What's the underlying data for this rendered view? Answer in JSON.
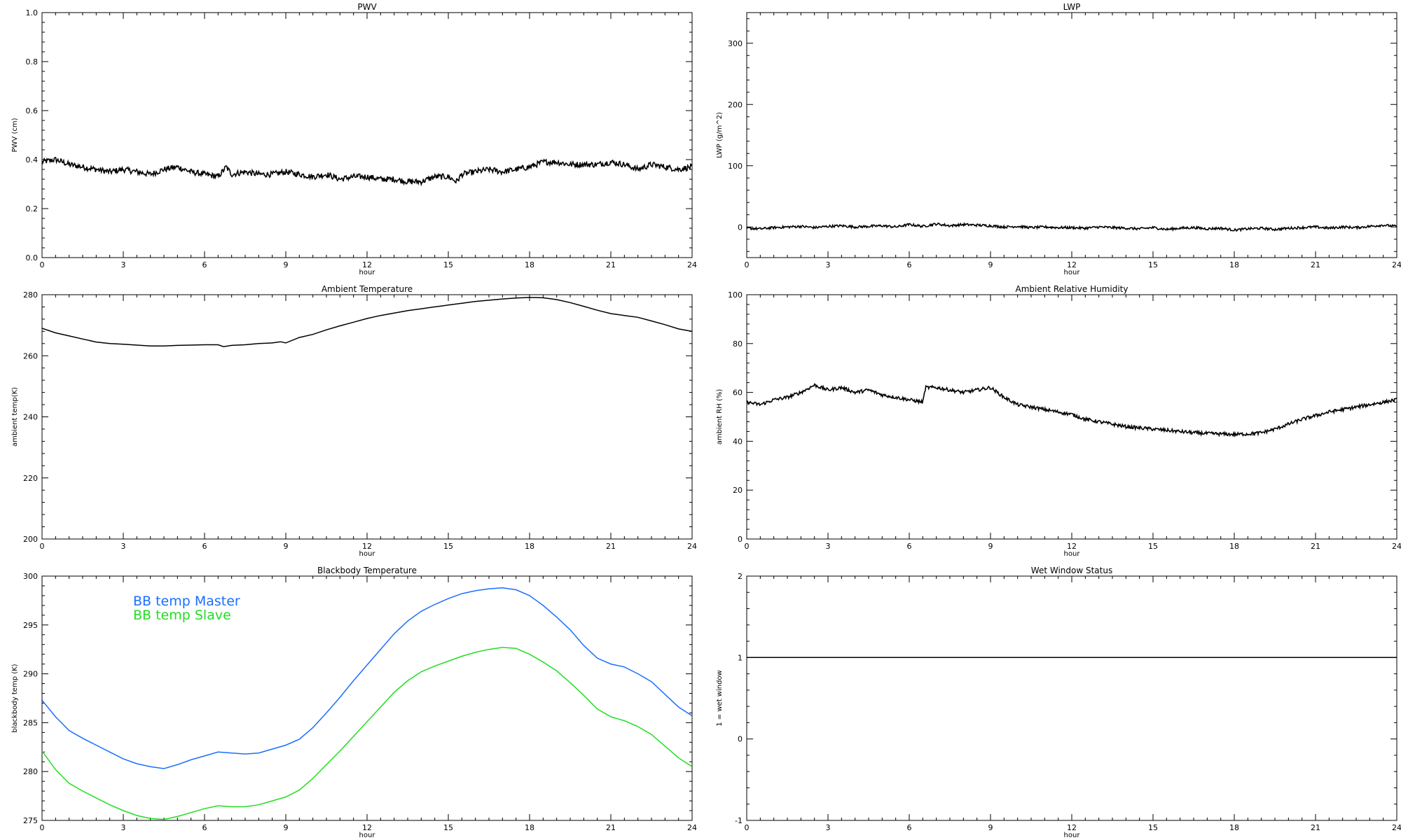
{
  "chart_data": [
    {
      "type": "line",
      "title": "PWV",
      "xlabel": "hour",
      "ylabel": "PWV (cm)",
      "xlim": [
        0,
        24
      ],
      "ylim": [
        0.0,
        1.0
      ],
      "xticks": [
        0,
        3,
        6,
        9,
        12,
        15,
        18,
        21,
        24
      ],
      "yticks": [
        0.0,
        0.2,
        0.4,
        0.6,
        0.8,
        1.0
      ],
      "ytick_labels": [
        "0.0",
        "0.2",
        "0.4",
        "0.6",
        "0.8",
        "1.0"
      ],
      "grid": false,
      "style": "noisy-dots",
      "noise": 0.012,
      "series": [
        {
          "color": "#000000",
          "x": [
            0,
            0.5,
            1,
            1.5,
            2,
            2.5,
            3,
            3.5,
            4,
            4.5,
            5,
            5.5,
            6,
            6.5,
            6.8,
            7,
            7.5,
            8,
            8.5,
            9,
            9.5,
            10,
            10.5,
            11,
            11.5,
            12,
            12.5,
            13,
            13.5,
            14,
            14.5,
            15,
            15.3,
            15.5,
            16,
            16.5,
            17,
            17.5,
            18,
            18.5,
            19,
            19.5,
            20,
            20.5,
            21,
            21.5,
            22,
            22.5,
            23,
            23.5,
            24
          ],
          "y": [
            0.39,
            0.4,
            0.38,
            0.37,
            0.36,
            0.35,
            0.36,
            0.35,
            0.34,
            0.36,
            0.37,
            0.35,
            0.34,
            0.33,
            0.37,
            0.34,
            0.35,
            0.34,
            0.34,
            0.35,
            0.34,
            0.33,
            0.34,
            0.32,
            0.33,
            0.33,
            0.32,
            0.32,
            0.31,
            0.31,
            0.33,
            0.33,
            0.31,
            0.34,
            0.35,
            0.36,
            0.35,
            0.36,
            0.37,
            0.39,
            0.39,
            0.38,
            0.38,
            0.38,
            0.39,
            0.38,
            0.36,
            0.38,
            0.37,
            0.36,
            0.37
          ]
        }
      ]
    },
    {
      "type": "line",
      "title": "LWP",
      "xlabel": "hour",
      "ylabel": "LWP (g/m^2)",
      "xlim": [
        0,
        24
      ],
      "ylim": [
        -50,
        350
      ],
      "xticks": [
        0,
        3,
        6,
        9,
        12,
        15,
        18,
        21,
        24
      ],
      "yticks": [
        0,
        100,
        200,
        300
      ],
      "ytick_labels": [
        "0",
        "100",
        "200",
        "300"
      ],
      "grid": false,
      "style": "noisy-dots",
      "noise": 2,
      "series": [
        {
          "color": "#000000",
          "x": [
            0,
            0.5,
            1,
            1.5,
            2,
            2.5,
            3,
            3.5,
            4,
            4.5,
            5,
            5.5,
            6,
            6.5,
            7,
            7.5,
            8,
            8.5,
            9,
            9.5,
            10,
            10.5,
            11,
            11.5,
            12,
            12.5,
            13,
            13.5,
            14,
            14.5,
            15,
            15.5,
            16,
            16.5,
            17,
            17.5,
            18,
            18.5,
            19,
            19.5,
            20,
            20.5,
            21,
            21.5,
            22,
            22.5,
            23,
            23.5,
            24
          ],
          "y": [
            -2,
            -3,
            -1,
            0,
            1,
            -1,
            1,
            2,
            0,
            1,
            2,
            0,
            4,
            1,
            5,
            2,
            4,
            3,
            2,
            0,
            1,
            -1,
            0,
            -1,
            -1,
            -2,
            0,
            -1,
            -2,
            -3,
            -1,
            -4,
            -2,
            -1,
            -3,
            -2,
            -5,
            -3,
            -2,
            -4,
            -2,
            -1,
            0,
            -2,
            0,
            -1,
            1,
            3,
            1
          ]
        }
      ]
    },
    {
      "type": "line",
      "title": "Ambient Temperature",
      "xlabel": "hour",
      "ylabel": "ambient temp(K)",
      "xlim": [
        0,
        24
      ],
      "ylim": [
        200,
        280
      ],
      "xticks": [
        0,
        3,
        6,
        9,
        12,
        15,
        18,
        21,
        24
      ],
      "yticks": [
        200,
        220,
        240,
        260,
        280
      ],
      "ytick_labels": [
        "200",
        "220",
        "240",
        "260",
        "280"
      ],
      "grid": false,
      "style": "line",
      "series": [
        {
          "color": "#000000",
          "x": [
            0,
            0.5,
            1,
            1.5,
            2,
            2.5,
            3,
            3.5,
            4,
            4.5,
            5,
            5.5,
            6,
            6.5,
            6.7,
            7,
            7.5,
            8,
            8.5,
            8.8,
            9,
            9.5,
            10,
            10.5,
            11,
            11.5,
            12,
            12.5,
            13,
            13.5,
            14,
            14.5,
            15,
            15.5,
            16,
            16.5,
            17,
            17.5,
            18,
            18.5,
            19,
            19.5,
            20,
            20.5,
            21,
            21.5,
            22,
            22.5,
            23,
            23.5,
            24
          ],
          "y": [
            269,
            267.5,
            266.5,
            265.5,
            264.5,
            264,
            263.8,
            263.5,
            263.2,
            263.2,
            263.4,
            263.5,
            263.6,
            263.6,
            263.0,
            263.4,
            263.6,
            264,
            264.2,
            264.6,
            264.2,
            266,
            267,
            268.5,
            269.8,
            271,
            272.2,
            273.2,
            274.0,
            274.8,
            275.4,
            276,
            276.6,
            277.2,
            277.8,
            278.2,
            278.6,
            278.9,
            279.1,
            279,
            278.4,
            277.4,
            276.2,
            274.9,
            273.8,
            273.2,
            272.6,
            271.4,
            270.2,
            268.8,
            268
          ]
        }
      ]
    },
    {
      "type": "line",
      "title": "Ambient Relative Humidity",
      "xlabel": "hour",
      "ylabel": "ambient RH (%)",
      "xlim": [
        0,
        24
      ],
      "ylim": [
        0,
        100
      ],
      "xticks": [
        0,
        3,
        6,
        9,
        12,
        15,
        18,
        21,
        24
      ],
      "yticks": [
        0,
        20,
        40,
        60,
        80,
        100
      ],
      "ytick_labels": [
        "0",
        "20",
        "40",
        "60",
        "80",
        "100"
      ],
      "grid": false,
      "style": "noisy-dots",
      "noise": 0.7,
      "series": [
        {
          "color": "#000000",
          "x": [
            0,
            0.5,
            1,
            1.5,
            2,
            2.5,
            3,
            3.5,
            4,
            4.5,
            5,
            5.5,
            6,
            6.5,
            6.6,
            7,
            7.5,
            8,
            8.5,
            9,
            9.5,
            10,
            10.5,
            11,
            11.5,
            12,
            12.5,
            13,
            13.5,
            14,
            14.5,
            15,
            15.5,
            16,
            16.5,
            17,
            17.5,
            18,
            18.5,
            19,
            19.5,
            20,
            20.5,
            21,
            21.5,
            22,
            22.5,
            23,
            23.5,
            24
          ],
          "y": [
            56,
            55,
            57,
            58,
            60,
            63,
            61,
            62,
            60,
            61,
            59,
            58,
            57,
            56,
            62,
            62,
            61,
            60,
            61,
            62,
            58,
            55,
            54,
            53,
            52,
            51,
            49,
            48,
            47,
            46,
            45.5,
            45,
            44.5,
            44,
            43.5,
            43.2,
            43,
            42.8,
            43,
            43.5,
            45,
            47,
            49,
            50.5,
            52,
            53,
            54,
            55,
            56,
            57
          ]
        }
      ]
    },
    {
      "type": "line",
      "title": "Blackbody Temperature",
      "xlabel": "hour",
      "ylabel": "blackbody temp (K)",
      "xlim": [
        0,
        24
      ],
      "ylim": [
        275,
        300
      ],
      "xticks": [
        0,
        3,
        6,
        9,
        12,
        15,
        18,
        21,
        24
      ],
      "yticks": [
        275,
        280,
        285,
        290,
        295,
        300
      ],
      "ytick_labels": [
        "275",
        "280",
        "285",
        "290",
        "295",
        "300"
      ],
      "grid": false,
      "style": "line",
      "legend": "top-left",
      "series": [
        {
          "name": "BB temp Master",
          "color": "#1a6fff",
          "x": [
            0,
            0.5,
            1,
            1.5,
            2,
            2.5,
            3,
            3.5,
            4,
            4.5,
            5,
            5.5,
            6,
            6.5,
            7,
            7.5,
            8,
            8.5,
            9,
            9.5,
            10,
            10.5,
            11,
            11.5,
            12,
            12.5,
            13,
            13.5,
            14,
            14.5,
            15,
            15.5,
            16,
            16.5,
            17,
            17.5,
            18,
            18.5,
            19,
            19.5,
            20,
            20.5,
            21,
            21.5,
            22,
            22.5,
            23,
            23.5,
            24
          ],
          "y": [
            287.3,
            285.6,
            284.2,
            283.4,
            282.7,
            282.0,
            281.3,
            280.8,
            280.5,
            280.3,
            280.7,
            281.2,
            281.6,
            282.0,
            281.9,
            281.8,
            281.9,
            282.3,
            282.7,
            283.3,
            284.5,
            286.0,
            287.6,
            289.3,
            290.9,
            292.5,
            294.1,
            295.4,
            296.4,
            297.1,
            297.7,
            298.2,
            298.5,
            298.7,
            298.8,
            298.6,
            298.0,
            297.0,
            295.8,
            294.5,
            292.9,
            291.6,
            291.0,
            290.7,
            290.0,
            289.2,
            287.9,
            286.6,
            285.7
          ]
        },
        {
          "name": "BB temp Slave",
          "color": "#22dd22",
          "x": [
            0,
            0.5,
            1,
            1.5,
            2,
            2.5,
            3,
            3.5,
            4,
            4.5,
            5,
            5.5,
            6,
            6.5,
            7,
            7.5,
            8,
            8.5,
            9,
            9.5,
            10,
            10.5,
            11,
            11.5,
            12,
            12.5,
            13,
            13.5,
            14,
            14.5,
            15,
            15.5,
            16,
            16.5,
            17,
            17.5,
            18,
            18.5,
            19,
            19.5,
            20,
            20.5,
            21,
            21.5,
            22,
            22.5,
            23,
            23.5,
            24
          ],
          "y": [
            282.1,
            280.2,
            278.8,
            278.0,
            277.3,
            276.6,
            276.0,
            275.5,
            275.2,
            275.1,
            275.4,
            275.8,
            276.2,
            276.5,
            276.4,
            276.4,
            276.6,
            277.0,
            277.4,
            278.1,
            279.3,
            280.7,
            282.1,
            283.6,
            285.1,
            286.6,
            288.1,
            289.3,
            290.2,
            290.8,
            291.3,
            291.8,
            292.2,
            292.5,
            292.7,
            292.6,
            292.0,
            291.2,
            290.3,
            289.1,
            287.8,
            286.4,
            285.6,
            285.2,
            284.6,
            283.8,
            282.6,
            281.4,
            280.5
          ]
        }
      ]
    },
    {
      "type": "line",
      "title": "Wet Window Status",
      "xlabel": "hour",
      "ylabel": "1 = wet window",
      "xlim": [
        0,
        24
      ],
      "ylim": [
        -1,
        2
      ],
      "xticks": [
        0,
        3,
        6,
        9,
        12,
        15,
        18,
        21,
        24
      ],
      "yticks": [
        -1,
        0,
        1,
        2
      ],
      "ytick_labels": [
        "-1",
        "0",
        "1",
        "2"
      ],
      "grid": false,
      "style": "line",
      "series": [
        {
          "color": "#000000",
          "x": [
            0,
            24
          ],
          "y": [
            1,
            1
          ]
        }
      ]
    }
  ]
}
